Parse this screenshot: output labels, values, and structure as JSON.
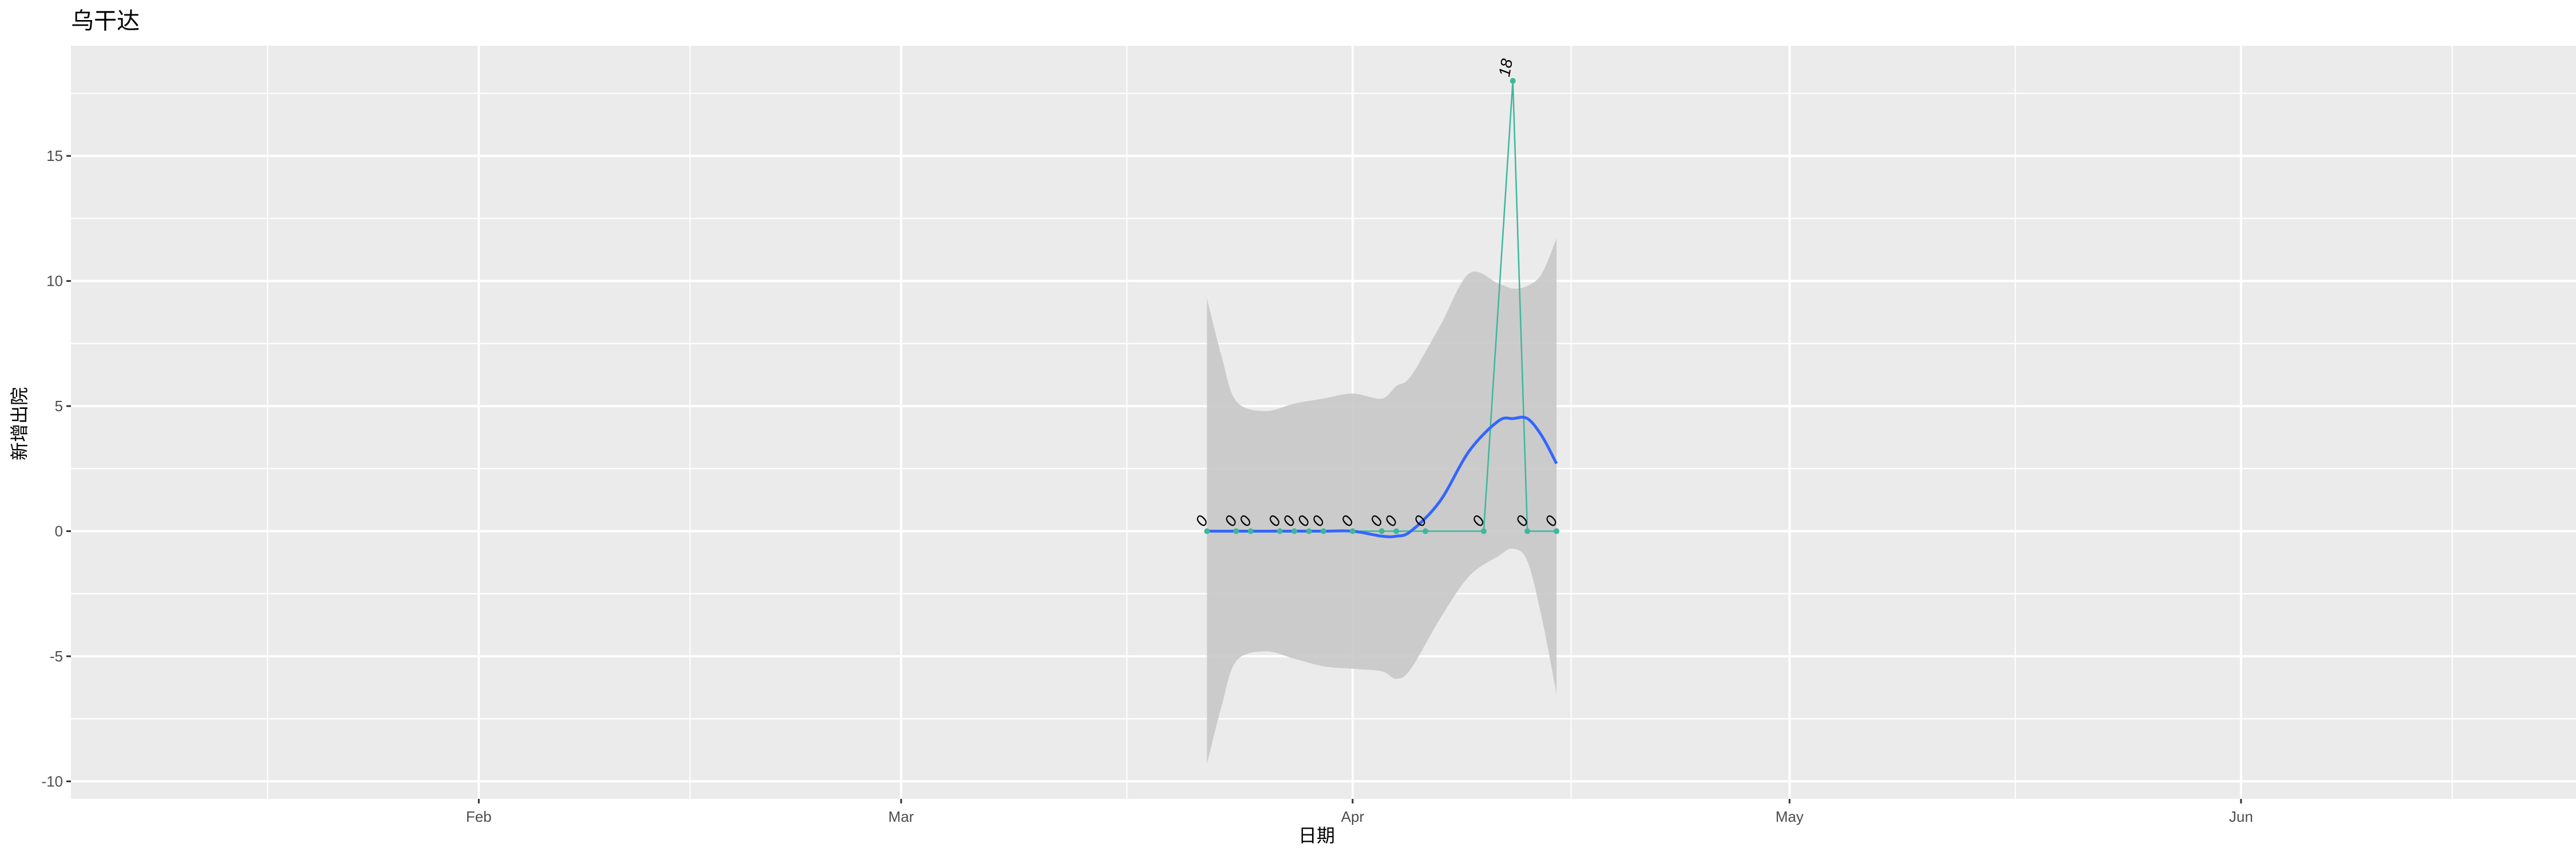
{
  "chart_data": {
    "type": "line",
    "title": "乌干达",
    "xlabel": "日期",
    "ylabel": "新增出院",
    "xlim": [
      "2020-01-04",
      "2020-06-24"
    ],
    "ylim": [
      -10.7,
      19.4
    ],
    "x_ticks": [
      {
        "date": "2020-02-01",
        "label": "Feb"
      },
      {
        "date": "2020-03-01",
        "label": "Mar"
      },
      {
        "date": "2020-04-01",
        "label": "Apr"
      },
      {
        "date": "2020-05-01",
        "label": "May"
      },
      {
        "date": "2020-06-01",
        "label": "Jun"
      }
    ],
    "y_ticks": [
      -10,
      -5,
      0,
      5,
      10,
      15
    ],
    "grid": true,
    "colors": {
      "points_line": "#3cb89a",
      "smooth": "#3366ff",
      "ribbon": "#c8c8c8",
      "panel": "#ebebeb"
    },
    "points": [
      {
        "date": "2020-03-22",
        "value": 0
      },
      {
        "date": "2020-03-24",
        "value": 0
      },
      {
        "date": "2020-03-25",
        "value": 0
      },
      {
        "date": "2020-03-27",
        "value": 0
      },
      {
        "date": "2020-03-28",
        "value": 0
      },
      {
        "date": "2020-03-29",
        "value": 0
      },
      {
        "date": "2020-03-30",
        "value": 0
      },
      {
        "date": "2020-04-01",
        "value": 0
      },
      {
        "date": "2020-04-03",
        "value": 0
      },
      {
        "date": "2020-04-04",
        "value": 0
      },
      {
        "date": "2020-04-06",
        "value": 0
      },
      {
        "date": "2020-04-10",
        "value": 0
      },
      {
        "date": "2020-04-12",
        "value": 18
      },
      {
        "date": "2020-04-13",
        "value": 0
      },
      {
        "date": "2020-04-15",
        "value": 0
      }
    ],
    "smooth": [
      {
        "date": "2020-03-22",
        "fit": 0,
        "lower": -9.3,
        "upper": 9.3
      },
      {
        "date": "2020-03-23",
        "fit": 0,
        "lower": -7,
        "upper": 7
      },
      {
        "date": "2020-03-24",
        "fit": 0,
        "lower": -5.2,
        "upper": 5.2
      },
      {
        "date": "2020-03-26",
        "fit": 0,
        "lower": -4.8,
        "upper": 4.8
      },
      {
        "date": "2020-03-28",
        "fit": 0,
        "lower": -5.1,
        "upper": 5.1
      },
      {
        "date": "2020-03-30",
        "fit": 0,
        "lower": -5.4,
        "upper": 5.3
      },
      {
        "date": "2020-04-01",
        "fit": 0,
        "lower": -5.5,
        "upper": 5.5
      },
      {
        "date": "2020-04-03",
        "fit": -0.2,
        "lower": -5.6,
        "upper": 5.3
      },
      {
        "date": "2020-04-04",
        "fit": -0.2,
        "lower": -5.9,
        "upper": 5.8
      },
      {
        "date": "2020-04-05",
        "fit": 0,
        "lower": -5.5,
        "upper": 6.2
      },
      {
        "date": "2020-04-07",
        "fit": 1.2,
        "lower": -3.5,
        "upper": 8.2
      },
      {
        "date": "2020-04-09",
        "fit": 3.2,
        "lower": -1.8,
        "upper": 10.3
      },
      {
        "date": "2020-04-11",
        "fit": 4.4,
        "lower": -1.0,
        "upper": 9.9
      },
      {
        "date": "2020-04-12",
        "fit": 4.5,
        "lower": -0.7,
        "upper": 9.7
      },
      {
        "date": "2020-04-13",
        "fit": 4.5,
        "lower": -1.2,
        "upper": 9.8
      },
      {
        "date": "2020-04-14",
        "fit": 3.8,
        "lower": -3.5,
        "upper": 10.3
      },
      {
        "date": "2020-04-15",
        "fit": 2.7,
        "lower": -6.5,
        "upper": 11.7
      }
    ]
  }
}
